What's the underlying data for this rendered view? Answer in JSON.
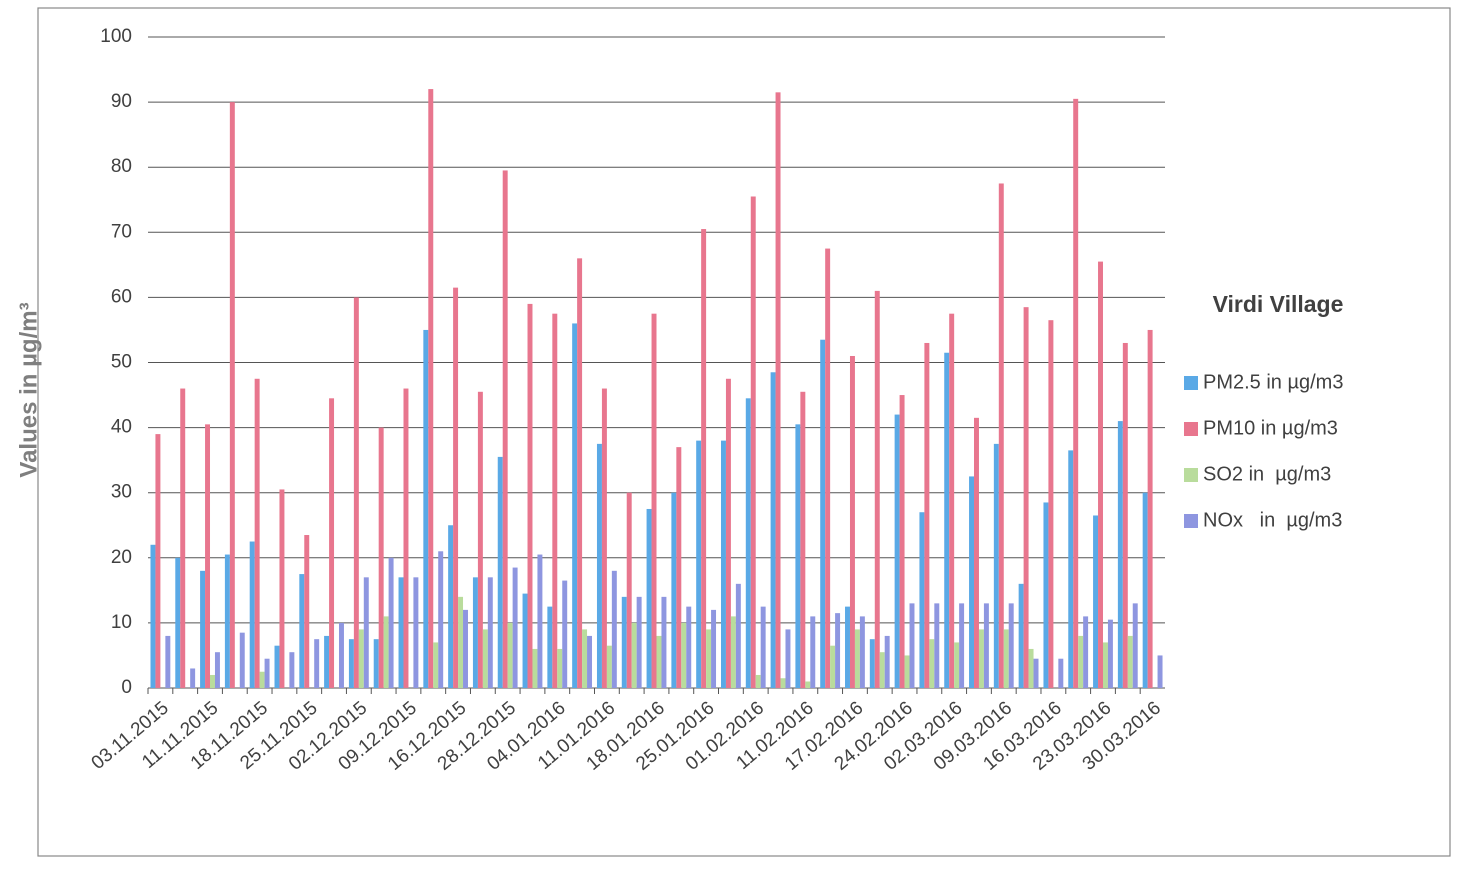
{
  "chart_data": {
    "type": "bar",
    "legend_title": "Virdi Village",
    "y_label": "Values in µg/m³",
    "categories": [
      "03.11.2015",
      null,
      "11.11.2015",
      null,
      "18.11.2015",
      null,
      "25.11.2015",
      null,
      "02.12.2015",
      null,
      "09.12.2015",
      null,
      "16.12.2015",
      null,
      "28.12.2015",
      null,
      "04.01.2016",
      null,
      "11.01.2016",
      null,
      "18.01.2016",
      null,
      "25.01.2016",
      null,
      "01.02.2016",
      null,
      "11.02.2016",
      null,
      "17.02.2016",
      null,
      "24.02.2016",
      null,
      "02.03.2016",
      null,
      "09.03.2016",
      null,
      "16.03.2016",
      null,
      "23.03.2016",
      null,
      "30.03.2016"
    ],
    "series": [
      {
        "name": "PM2.5 in µg/m3",
        "color": "#5aa9e6",
        "values": [
          22,
          20,
          18,
          20.5,
          22.5,
          6.5,
          17.5,
          8,
          7.5,
          7.5,
          17,
          55,
          25,
          17,
          35.5,
          14.5,
          12.5,
          56,
          37.5,
          14,
          27.5,
          30,
          38,
          38,
          44.5,
          48.5,
          40.5,
          53.5,
          12.5,
          7.5,
          42,
          27,
          51.5,
          32.5,
          37.5,
          16,
          28.5,
          36.5,
          26.5,
          41,
          30
        ]
      },
      {
        "name": "PM10 in µg/m3",
        "color": "#e8768e",
        "values": [
          39,
          46,
          40.5,
          90,
          47.5,
          30.5,
          23.5,
          44.5,
          60,
          40,
          46,
          92,
          61.5,
          45.5,
          79.5,
          59,
          57.5,
          66,
          46,
          30,
          57.5,
          37,
          70.5,
          47.5,
          75.5,
          91.5,
          45.5,
          67.5,
          51,
          61,
          45,
          53,
          57.5,
          41.5,
          77.5,
          58.5,
          56.5,
          90.5,
          65.5,
          53,
          55
        ]
      },
      {
        "name": "SO2 in  µg/m3",
        "color": "#b9dc9c",
        "values": [
          0,
          0,
          2,
          0,
          2.5,
          0,
          0,
          0,
          9,
          11,
          0,
          7,
          14,
          9,
          10,
          6,
          6,
          9,
          6.5,
          10,
          8,
          10,
          9,
          11,
          2,
          1.5,
          1,
          6.5,
          9,
          5.5,
          5,
          7.5,
          7,
          9,
          9,
          6,
          0,
          8,
          7,
          8,
          0
        ]
      },
      {
        "name": "NOx   in  µg/m3",
        "color": "#8e96e0",
        "values": [
          8,
          3,
          5.5,
          8.5,
          4.5,
          5.5,
          7.5,
          10,
          17,
          20,
          17,
          21,
          12,
          17,
          18.5,
          20.5,
          16.5,
          8,
          18,
          14,
          14,
          12.5,
          12,
          16,
          12.5,
          9,
          11,
          11.5,
          11,
          8,
          13,
          13,
          13,
          13,
          13,
          4.5,
          4.5,
          11,
          10.5,
          13,
          5
        ]
      }
    ],
    "ylim": [
      0,
      100
    ],
    "yticks": [
      0,
      10,
      20,
      30,
      40,
      50,
      60,
      70,
      80,
      90,
      100
    ],
    "grid": true
  }
}
